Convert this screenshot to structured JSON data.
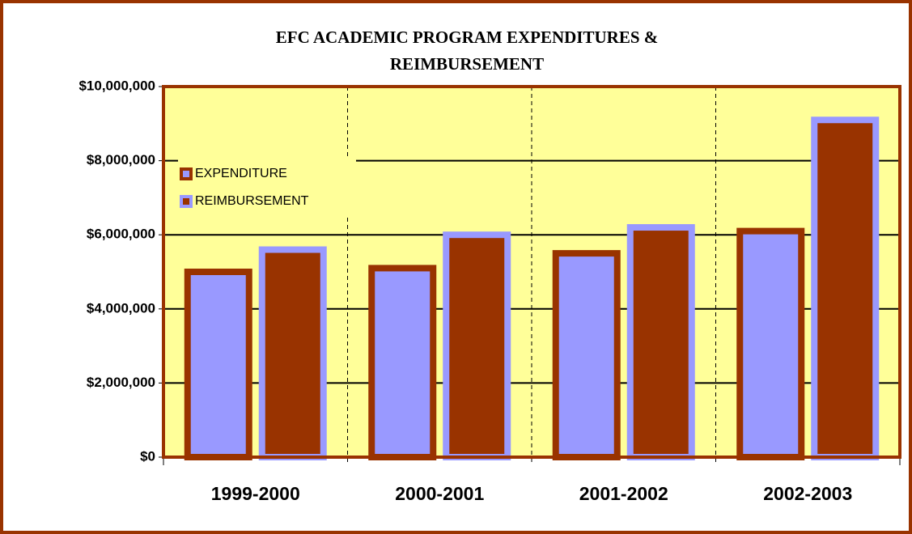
{
  "chart_data": {
    "type": "bar",
    "title": [
      "EFC ACADEMIC PROGRAM EXPENDITURES &",
      "REIMBURSEMENT"
    ],
    "categories": [
      "1999-2000",
      "2000-2001",
      "2001-2002",
      "2002-2003"
    ],
    "series": [
      {
        "name": "EXPENDITURE",
        "color": "#9999FF",
        "border_color": "#993300",
        "values": [
          5000000,
          5100000,
          5500000,
          6100000
        ]
      },
      {
        "name": "REIMBURSEMENT",
        "color": "#993300",
        "border_color": "#9999FF",
        "values": [
          5600000,
          6000000,
          6200000,
          9100000
        ]
      }
    ],
    "ylim": [
      0,
      10000000
    ],
    "yticks": [
      {
        "value": 0,
        "label": "$0"
      },
      {
        "value": 2000000,
        "label": "$2,000,000"
      },
      {
        "value": 4000000,
        "label": "$4,000,000"
      },
      {
        "value": 6000000,
        "label": "$6,000,000"
      },
      {
        "value": 8000000,
        "label": "$8,000,000"
      },
      {
        "value": 10000000,
        "label": "$10,000,000"
      }
    ],
    "grid": true,
    "legend": "upper left",
    "plot_background": "#FFFF99"
  }
}
